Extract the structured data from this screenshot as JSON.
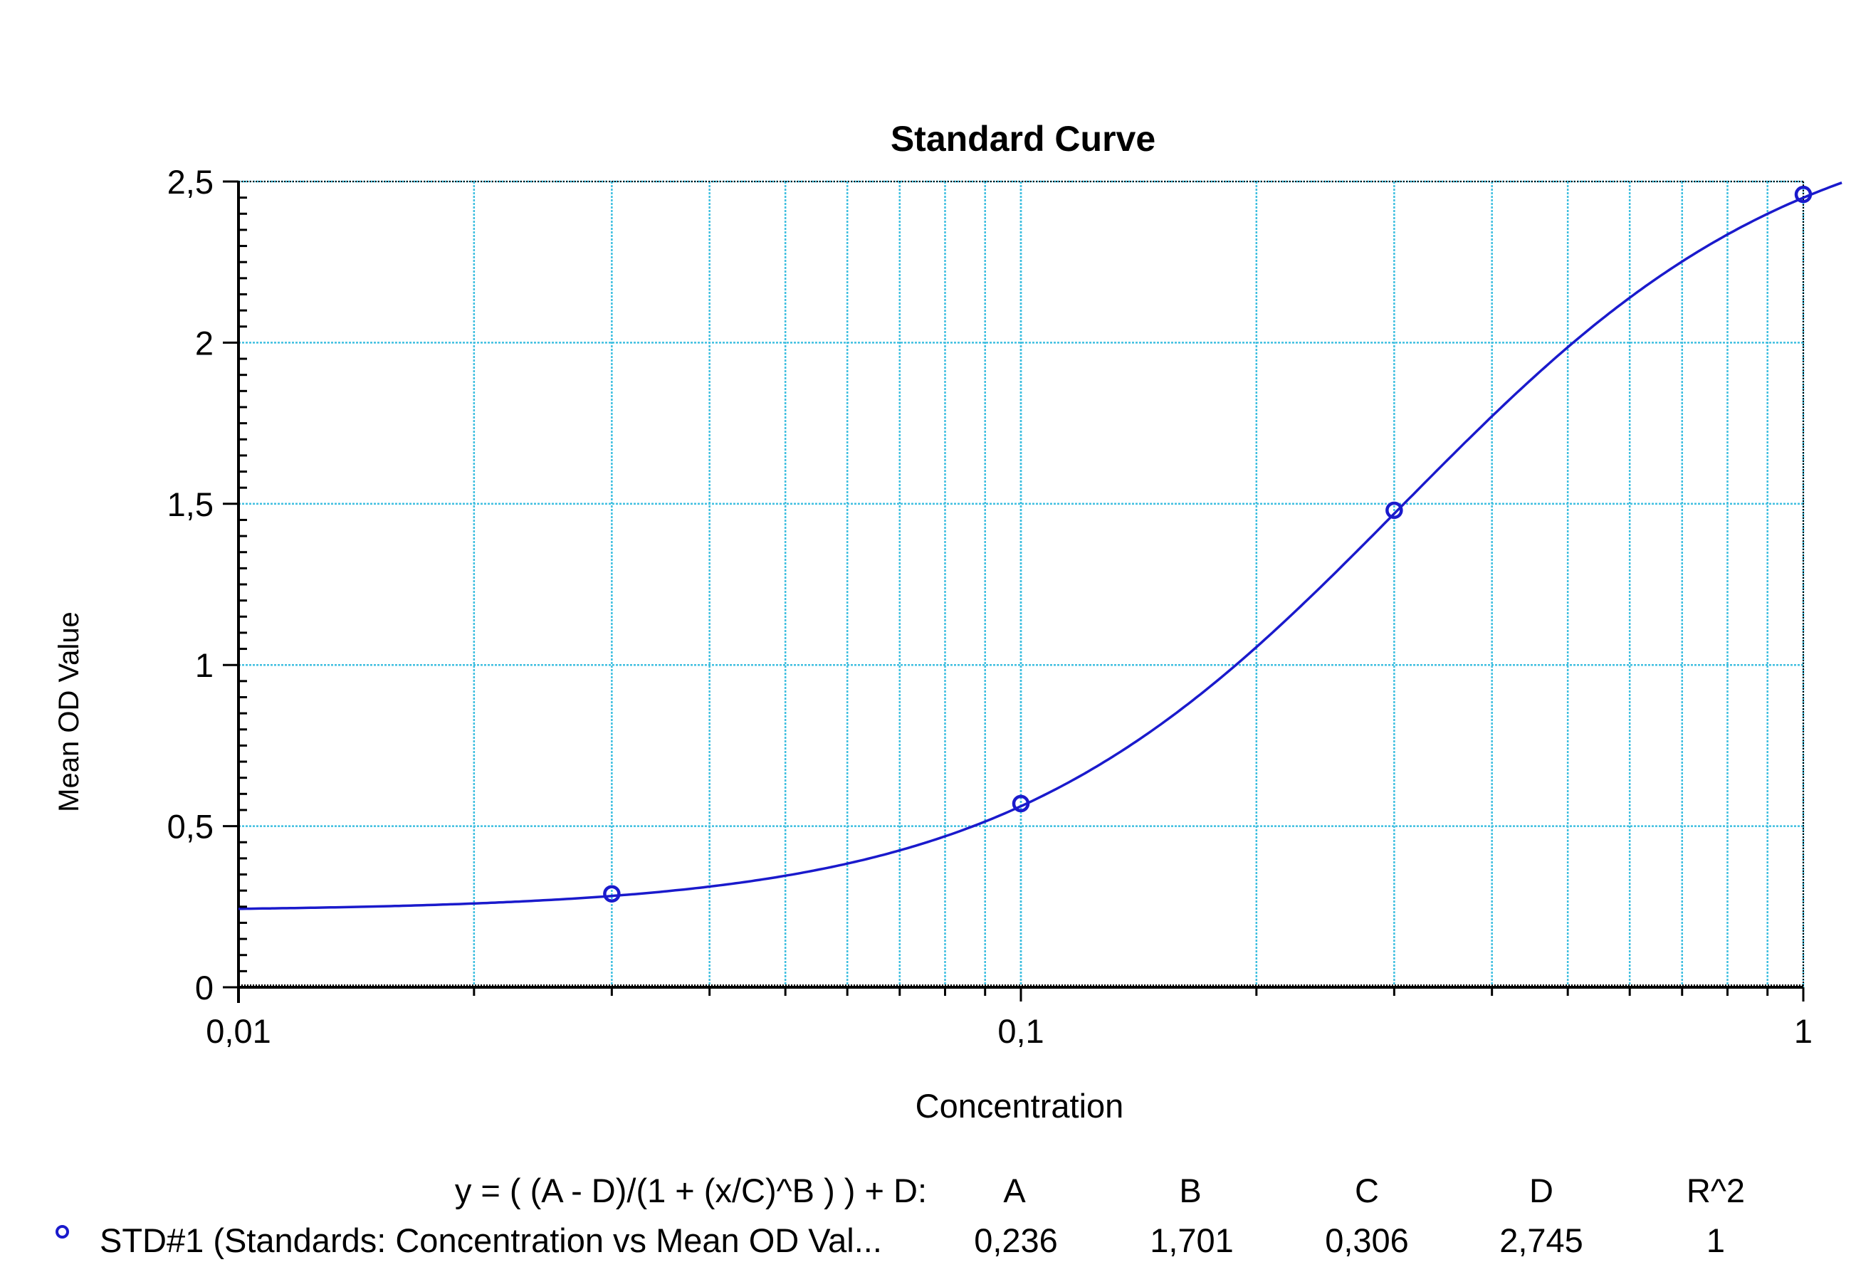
{
  "chart_data": {
    "type": "line",
    "title": "Standard Curve",
    "xlabel": "Concentration",
    "ylabel": "Mean OD Value",
    "x_scale": "log",
    "xlim": [
      0.01,
      1
    ],
    "ylim": [
      0,
      2.5
    ],
    "x_ticks": [
      {
        "value": 0.01,
        "label": "0,01"
      },
      {
        "value": 0.1,
        "label": "0,1"
      },
      {
        "value": 1,
        "label": "1"
      }
    ],
    "y_ticks": [
      {
        "value": 0,
        "label": "0"
      },
      {
        "value": 0.5,
        "label": "0,5"
      },
      {
        "value": 1,
        "label": "1"
      },
      {
        "value": 1.5,
        "label": "1,5"
      },
      {
        "value": 2,
        "label": "2"
      },
      {
        "value": 2.5,
        "label": "2,5"
      }
    ],
    "grid": true,
    "colors": {
      "curve": "#1a1acc",
      "grid": "#3fbfe0",
      "axis": "#000000"
    },
    "series": [
      {
        "name": "STD#1 (Standards: Concentration vs Mean OD Val...",
        "points": [
          {
            "x": 0.03,
            "y": 0.29
          },
          {
            "x": 0.1,
            "y": 0.57
          },
          {
            "x": 0.3,
            "y": 1.48
          },
          {
            "x": 1,
            "y": 2.46
          }
        ],
        "fit": {
          "model": "4PL",
          "A": 0.236,
          "B": 1.701,
          "C": 0.306,
          "D": 2.745
        }
      }
    ]
  },
  "legend": {
    "equation": "y = ( (A - D)/(1 + (x/C)^B ) ) + D:",
    "headers": [
      "A",
      "B",
      "C",
      "D",
      "R^2"
    ],
    "series_label": "STD#1 (Standards: Concentration vs Mean OD Val...",
    "values": [
      "0,236",
      "1,701",
      "0,306",
      "2,745",
      "1"
    ]
  }
}
